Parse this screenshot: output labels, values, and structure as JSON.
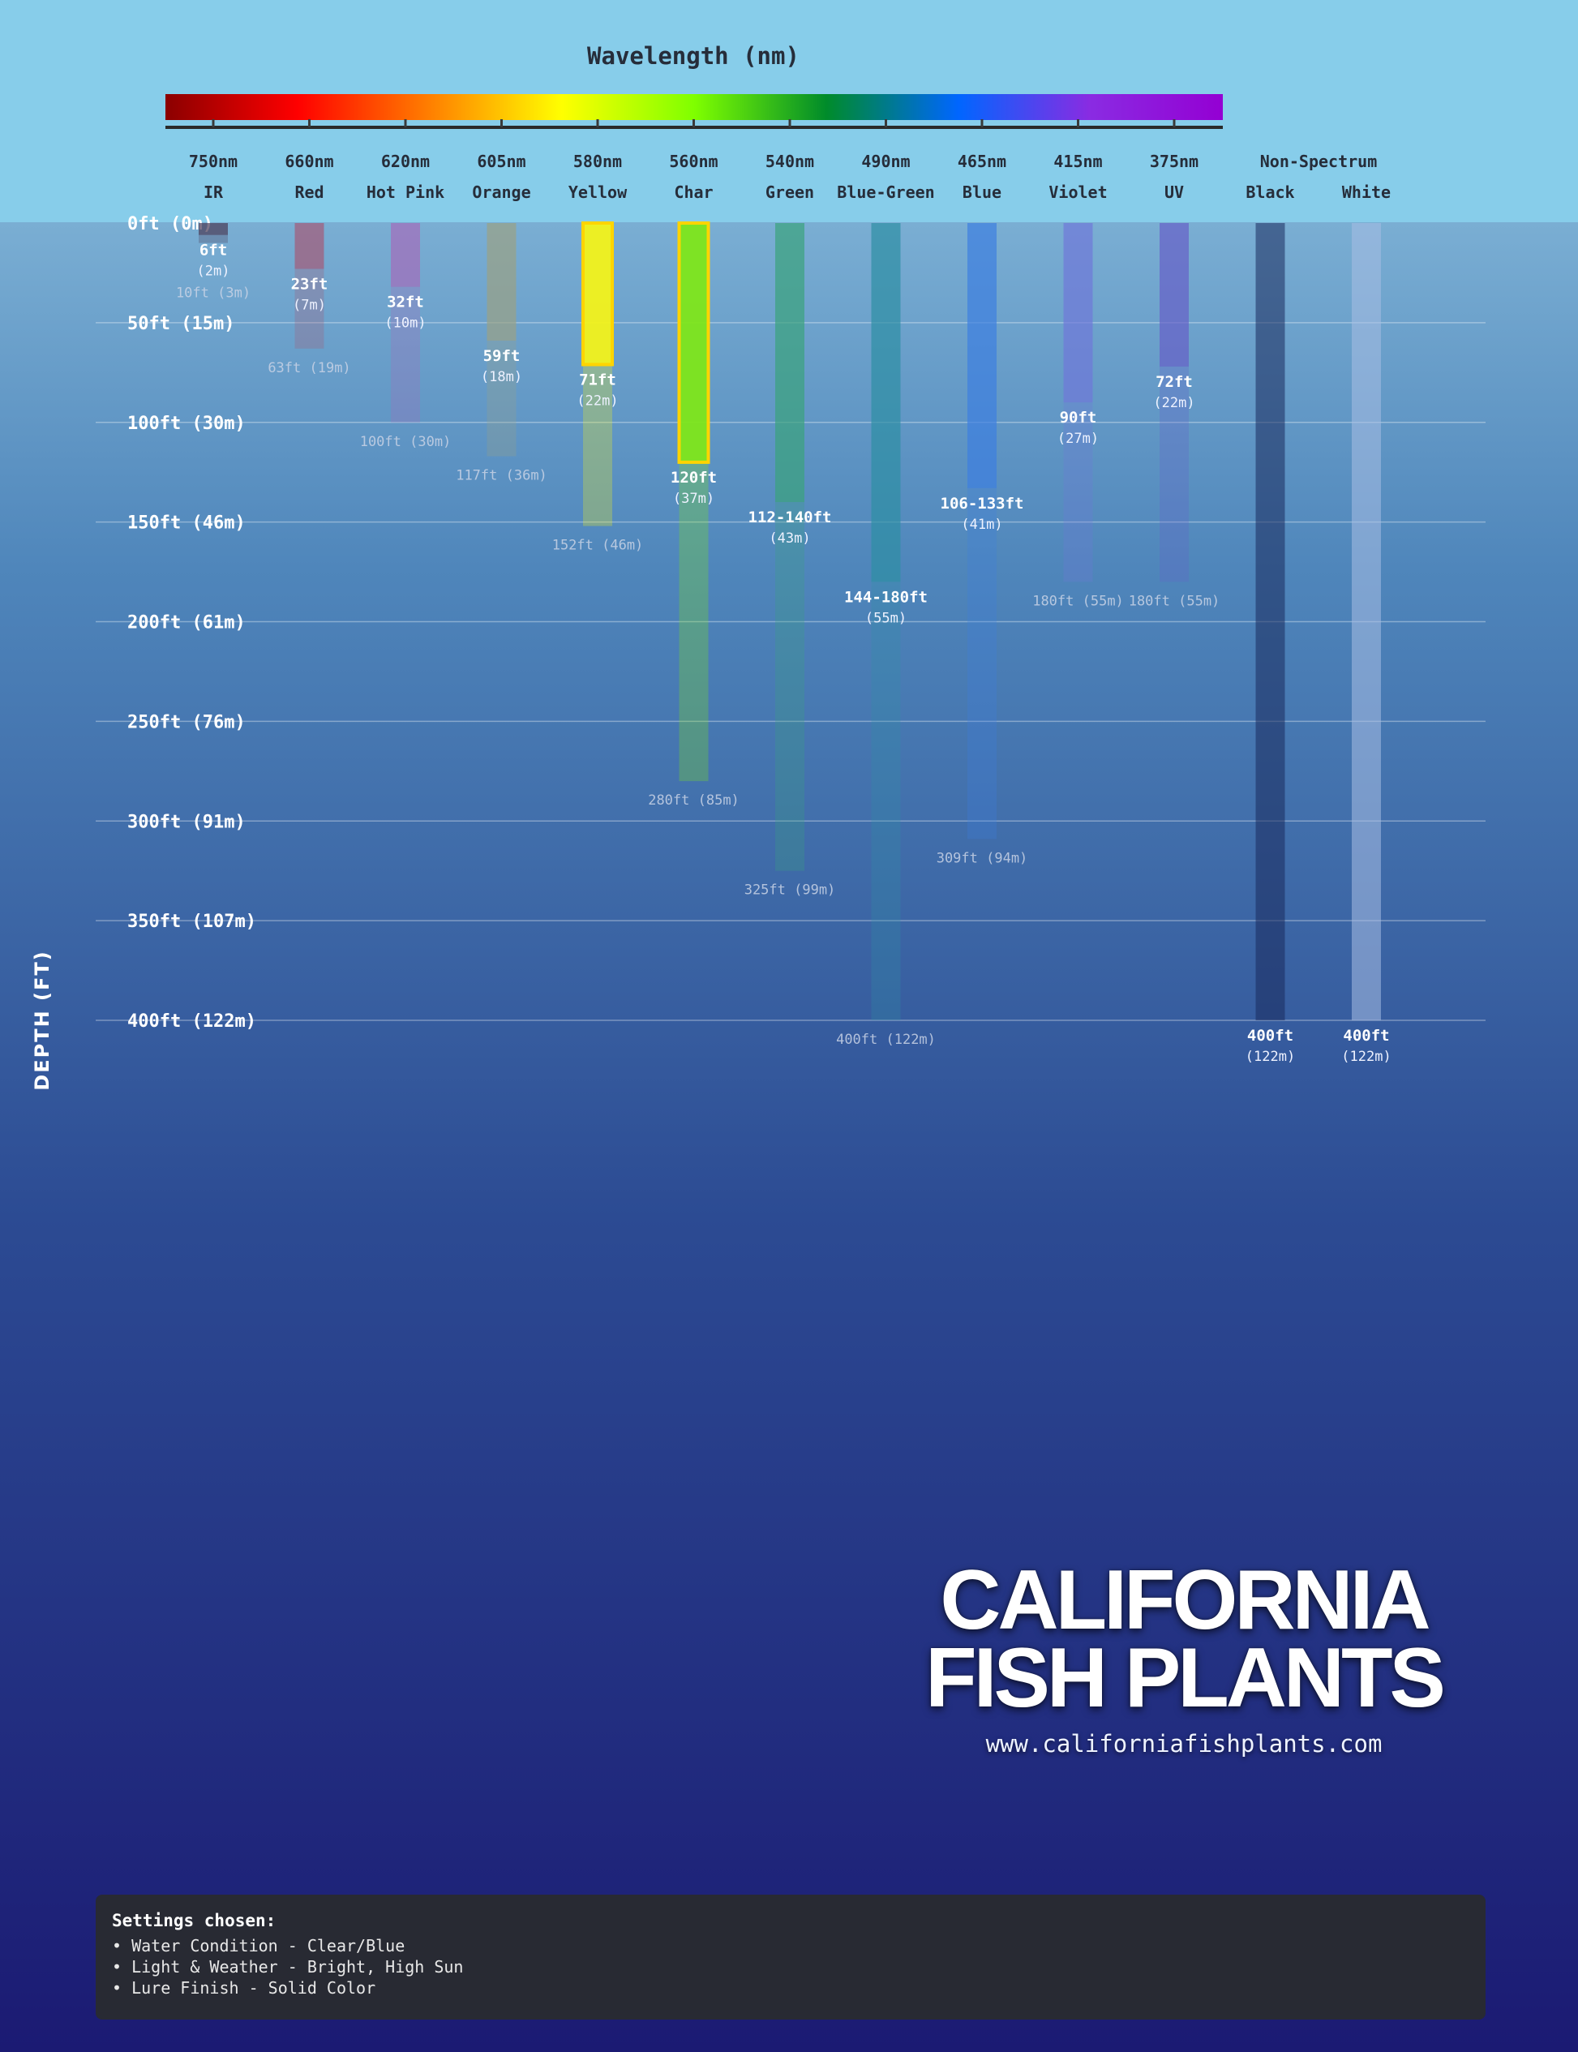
{
  "chart_data": {
    "type": "bar",
    "title": "Wavelength (nm)",
    "ylabel": "DEPTH (FT)",
    "ylim": [
      0,
      400
    ],
    "yticks": [
      {
        "value": 0,
        "label": "0ft (0m)"
      },
      {
        "value": 50,
        "label": "50ft (15m)"
      },
      {
        "value": 100,
        "label": "100ft (30m)"
      },
      {
        "value": 150,
        "label": "150ft (46m)"
      },
      {
        "value": 200,
        "label": "200ft (61m)"
      },
      {
        "value": 250,
        "label": "250ft (76m)"
      },
      {
        "value": 300,
        "label": "300ft (91m)"
      },
      {
        "value": 350,
        "label": "350ft (107m)"
      },
      {
        "value": 400,
        "label": "400ft (122m)"
      }
    ],
    "categories": [
      {
        "wavelength": "750nm",
        "name": "IR",
        "color": "#4a3a55",
        "visible": 6,
        "visible_label": "6ft",
        "visible_sub": "(2m)",
        "fade": 10,
        "fade_label": "10ft (3m)",
        "highlight": false
      },
      {
        "wavelength": "660nm",
        "name": "Red",
        "color": "#a45a77",
        "visible": 23,
        "visible_label": "23ft",
        "visible_sub": "(7m)",
        "fade": 63,
        "fade_label": "63ft (19m)",
        "highlight": false
      },
      {
        "wavelength": "620nm",
        "name": "Hot Pink",
        "color": "#a46cba",
        "visible": 32,
        "visible_label": "32ft",
        "visible_sub": "(10m)",
        "fade": 100,
        "fade_label": "100ft (30m)",
        "highlight": false
      },
      {
        "wavelength": "605nm",
        "name": "Orange",
        "color": "#9aa184",
        "visible": 59,
        "visible_label": "59ft",
        "visible_sub": "(18m)",
        "fade": 117,
        "fade_label": "117ft (36m)",
        "highlight": false
      },
      {
        "wavelength": "580nm",
        "name": "Yellow",
        "color": "#f2f21a",
        "visible": 71,
        "visible_label": "71ft",
        "visible_sub": "(22m)",
        "fade": 152,
        "fade_label": "152ft (46m)",
        "highlight": true
      },
      {
        "wavelength": "560nm",
        "name": "Char",
        "color": "#7ee61a",
        "visible": 120,
        "visible_label": "120ft",
        "visible_sub": "(37m)",
        "fade": 280,
        "fade_label": "280ft (85m)",
        "highlight": true
      },
      {
        "wavelength": "540nm",
        "name": "Green",
        "color": "#3aa27c",
        "visible": 140,
        "visible_label": "112-140ft",
        "visible_sub": "(43m)",
        "fade": 325,
        "fade_label": "325ft (99m)",
        "highlight": false
      },
      {
        "wavelength": "490nm",
        "name": "Blue-Green",
        "color": "#2d8fa4",
        "visible": 180,
        "visible_label": "144-180ft",
        "visible_sub": "(55m)",
        "fade": 400,
        "fade_label": "400ft (122m)",
        "highlight": false
      },
      {
        "wavelength": "465nm",
        "name": "Blue",
        "color": "#3d7fe0",
        "visible": 133,
        "visible_label": "106-133ft",
        "visible_sub": "(41m)",
        "fade": 309,
        "fade_label": "309ft (94m)",
        "highlight": false
      },
      {
        "wavelength": "415nm",
        "name": "Violet",
        "color": "#6f78d8",
        "visible": 90,
        "visible_label": "90ft",
        "visible_sub": "(27m)",
        "fade": 180,
        "fade_label": "180ft (55m)",
        "highlight": false
      },
      {
        "wavelength": "375nm",
        "name": "UV",
        "color": "#6660c8",
        "visible": 72,
        "visible_label": "72ft",
        "visible_sub": "(22m)",
        "fade": 180,
        "fade_label": "180ft (55m)",
        "highlight": false
      },
      {
        "wavelength": "",
        "name": "Black",
        "color": "#1a2a5c",
        "visible": 400,
        "visible_label": "400ft",
        "visible_sub": "(122m)",
        "fade": 400,
        "fade_label": "",
        "highlight": false
      },
      {
        "wavelength": "",
        "name": "White",
        "color": "#a8bde4",
        "visible": 400,
        "visible_label": "400ft",
        "visible_sub": "(122m)",
        "fade": 400,
        "fade_label": "",
        "highlight": false
      }
    ],
    "non_spectrum_label": "Non-Spectrum",
    "spectrum_colors": [
      "#8b0000",
      "#ff0000",
      "#ff7f00",
      "#ffff00",
      "#7fff00",
      "#008b2a",
      "#0066ff",
      "#8a2be2",
      "#9400d3"
    ]
  },
  "logo": {
    "line1": "CALIFORNIA",
    "line2": "FISH PLANTS",
    "url": "www.californiafishplants.com"
  },
  "settings": {
    "title": "Settings chosen:",
    "items": [
      "• Water Condition - Clear/Blue",
      "• Light & Weather - Bright, High Sun",
      "• Lure Finish - Solid Color"
    ]
  }
}
